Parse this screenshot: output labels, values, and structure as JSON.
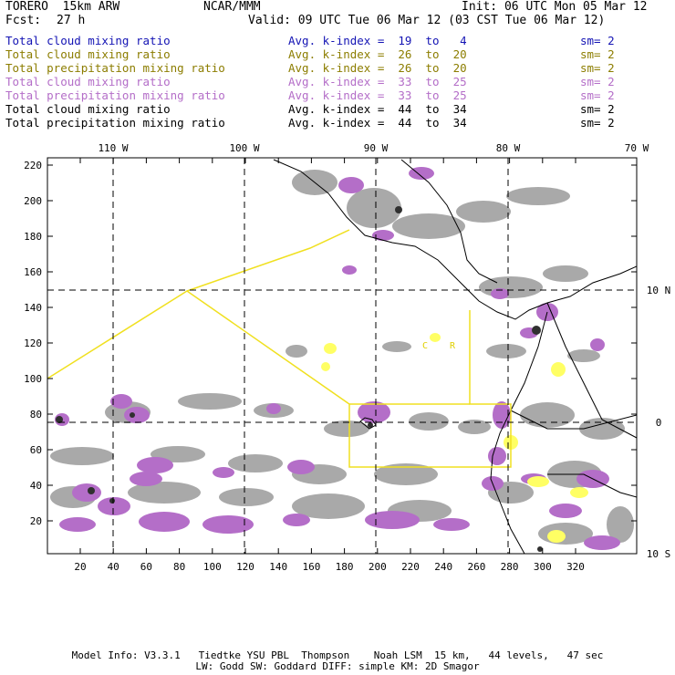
{
  "header": {
    "model": "TORERO  15km ARW",
    "center": "NCAR/MMM",
    "init": "Init: 06 UTC Mon 05 Mar 12",
    "fcst_label": "Fcst:",
    "fcst_value": "27 h",
    "valid": "Valid: 09 UTC Tue 06 Mar 12 (03 CST Tue 06 Mar 12)"
  },
  "legend": [
    {
      "name": "Total cloud mixing ratio",
      "kindex": "Avg. k-index =  19  to   4",
      "sm": "sm= 2",
      "color": "#1414b4"
    },
    {
      "name": "Total cloud mixing ratio",
      "kindex": "Avg. k-index =  26  to  20",
      "sm": "sm= 2",
      "color": "#8c7d00"
    },
    {
      "name": "Total precipitation mixing ratio",
      "kindex": "Avg. k-index =  26  to  20",
      "sm": "sm= 2",
      "color": "#8c7d00"
    },
    {
      "name": "Total cloud mixing ratio",
      "kindex": "Avg. k-index =  33  to  25",
      "sm": "sm= 2",
      "color": "#b46ec8"
    },
    {
      "name": "Total precipitation mixing ratio",
      "kindex": "Avg. k-index =  33  to  25",
      "sm": "sm= 2",
      "color": "#b46ec8"
    },
    {
      "name": "Total cloud mixing ratio",
      "kindex": "Avg. k-index =  44  to  34",
      "sm": "sm= 2",
      "color": "#000000"
    },
    {
      "name": "Total precipitation mixing ratio",
      "kindex": "Avg. k-index =  44  to  34",
      "sm": "sm= 2",
      "color": "#000000"
    }
  ],
  "map": {
    "lon_labels": [
      "110 W",
      "100 W",
      "90 W",
      "80 W",
      "70 W"
    ],
    "lat_labels": [
      "10 N",
      "0",
      "10 S"
    ],
    "y_ticks": [
      "220",
      "200",
      "180",
      "160",
      "140",
      "120",
      "100",
      "80",
      "60",
      "40",
      "20"
    ],
    "x_ticks": [
      "20",
      "40",
      "60",
      "80",
      "100",
      "120",
      "140",
      "160",
      "180",
      "200",
      "220",
      "240",
      "260",
      "280",
      "300",
      "320"
    ],
    "station_labels": [
      "C",
      "R"
    ],
    "colors": {
      "gray": "#9a9a9a",
      "purple": "#b46ec8",
      "yellow": "#ffff64",
      "coast": "#000000",
      "boundary": "#f0e020"
    }
  },
  "footer": {
    "line1": "Model Info: V3.3.1   Tiedtke YSU PBL  Thompson    Noah LSM  15 km,   44 levels,   47 sec",
    "line2": "LW: Godd SW: Goddard DIFF: simple KM: 2D Smagor"
  }
}
